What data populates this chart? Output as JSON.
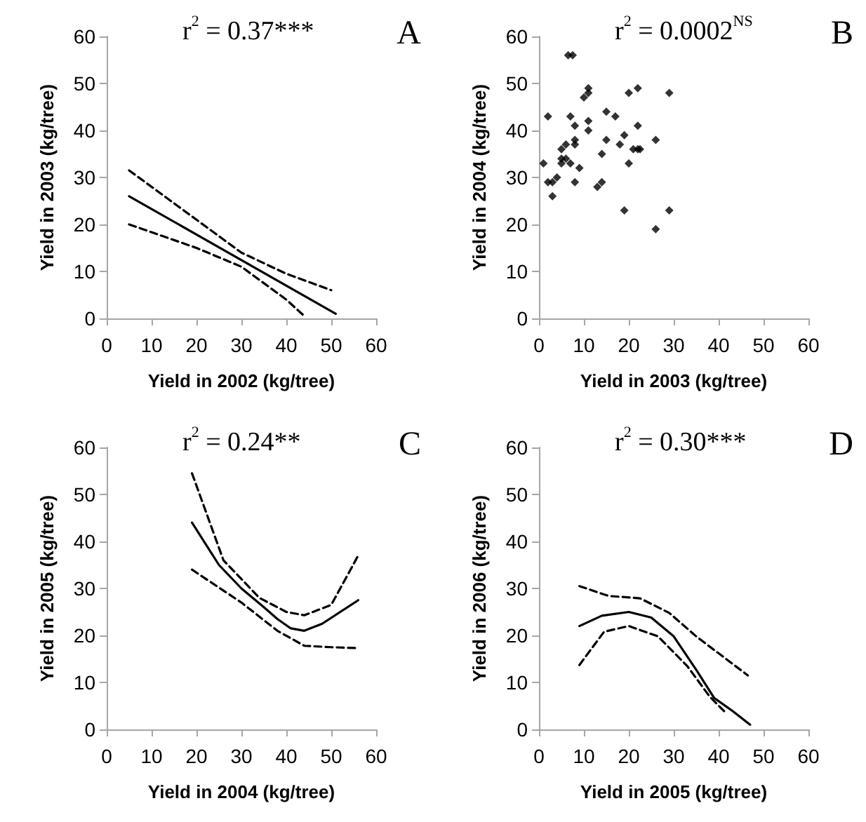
{
  "chart_data": [
    {
      "type": "line",
      "xlabel": "Yield in 2002 (kg/tree)",
      "ylabel": "Yield in 2003 (kg/tree)",
      "annotations": [
        "r$^{2}$ = 0.37***",
        "A"
      ],
      "xlim": [
        0,
        60
      ],
      "xticks": [
        0,
        10,
        20,
        30,
        40,
        50,
        60
      ],
      "ylim": [
        0,
        60
      ],
      "yticks": [
        0,
        10,
        20,
        30,
        40,
        50,
        60
      ],
      "grid": false,
      "marker": "none",
      "series": [
        {
          "color": "#000000",
          "line_style": "solid",
          "x": [
            5,
            51
          ],
          "values": [
            26,
            1
          ]
        },
        {
          "color": "#000000",
          "line_style": "dashed",
          "x": [
            5,
            20,
            30,
            40,
            50
          ],
          "values": [
            31.5,
            21,
            14,
            9.5,
            6
          ]
        },
        {
          "color": "#000000",
          "line_style": "dashed",
          "x": [
            5,
            20,
            30,
            40,
            44
          ],
          "values": [
            20,
            15,
            11,
            4,
            0.5
          ]
        }
      ]
    },
    {
      "type": "scatter",
      "xlabel": "Yield in 2003 (kg/tree)",
      "ylabel": "Yield in 2004 (kg/tree)",
      "annotations": [
        "r$^{2}$ = 0.0002$^{NS}$",
        "B"
      ],
      "xlim": [
        0,
        60
      ],
      "xticks": [
        0,
        10,
        20,
        30,
        40,
        50,
        60
      ],
      "ylim": [
        0,
        60
      ],
      "yticks": [
        0,
        10,
        20,
        30,
        40,
        50,
        60
      ],
      "grid": false,
      "marker": "diamond",
      "series": [
        {
          "color": "#000000",
          "x": [
            6.5,
            7.5,
            2,
            7,
            8,
            11,
            1,
            2,
            3,
            3,
            4,
            5,
            5,
            6,
            6,
            7,
            5,
            8,
            8,
            9,
            8,
            10,
            11,
            11,
            11,
            14,
            13,
            14,
            15,
            15,
            17,
            18,
            19,
            19,
            20,
            20,
            21,
            22,
            22.5,
            22,
            22,
            26,
            26,
            29,
            29
          ],
          "values": [
            56,
            56,
            43,
            43,
            41,
            42,
            33,
            29,
            29,
            26,
            30,
            36,
            34,
            37,
            34,
            33,
            33,
            38,
            37,
            32,
            29,
            47,
            48,
            49,
            40,
            35,
            28,
            29,
            44,
            38,
            43,
            37,
            39,
            23,
            48,
            33,
            36,
            36,
            36,
            49,
            41,
            38,
            19,
            48,
            23
          ]
        }
      ]
    },
    {
      "type": "line",
      "xlabel": "Yield in 2004 (kg/tree)",
      "ylabel": "Yield in 2005 (kg/tree)",
      "annotations": [
        "r$^{2}$ = 0.24**",
        "C"
      ],
      "xlim": [
        0,
        60
      ],
      "xticks": [
        0,
        10,
        20,
        30,
        40,
        50,
        60
      ],
      "ylim": [
        0,
        60
      ],
      "yticks": [
        0,
        10,
        20,
        30,
        40,
        50,
        60
      ],
      "grid": false,
      "marker": "none",
      "series": [
        {
          "color": "#000000",
          "line_style": "solid",
          "x": [
            19,
            25,
            30,
            35,
            38,
            41,
            44,
            48,
            52,
            56
          ],
          "values": [
            44,
            35,
            30,
            26,
            23.5,
            21.5,
            21,
            22.5,
            25,
            27.5
          ]
        },
        {
          "color": "#000000",
          "line_style": "dashed",
          "x": [
            19,
            26,
            34,
            40,
            44,
            50,
            56
          ],
          "values": [
            54.5,
            36,
            28,
            25,
            24.3,
            26.5,
            37
          ]
        },
        {
          "color": "#000000",
          "line_style": "dashed",
          "x": [
            19,
            30,
            38,
            44,
            50,
            56
          ],
          "values": [
            34,
            27,
            21,
            17.8,
            17.5,
            17.3
          ]
        }
      ]
    },
    {
      "type": "line",
      "xlabel": "Yield in 2005 (kg/tree)",
      "ylabel": "Yield in 2006 (kg/tree)",
      "annotations": [
        "r$^{2}$ = 0.30***",
        "D"
      ],
      "xlim": [
        0,
        60
      ],
      "xticks": [
        0,
        10,
        20,
        30,
        40,
        50,
        60
      ],
      "ylim": [
        0,
        60
      ],
      "yticks": [
        0,
        10,
        20,
        30,
        40,
        50,
        60
      ],
      "grid": false,
      "marker": "none",
      "series": [
        {
          "color": "#000000",
          "line_style": "solid",
          "x": [
            9,
            14,
            20,
            25,
            30,
            35,
            39,
            43,
            47
          ],
          "values": [
            22,
            24.2,
            25,
            23.8,
            19.8,
            12.7,
            6.7,
            4,
            1
          ]
        },
        {
          "color": "#000000",
          "line_style": "dashed",
          "x": [
            9,
            15.5,
            22.5,
            29,
            35,
            46.5
          ],
          "values": [
            30.5,
            28.4,
            27.9,
            24.8,
            19.8,
            11.5
          ]
        },
        {
          "color": "#000000",
          "line_style": "dashed",
          "x": [
            9,
            14.5,
            20,
            26.5,
            33,
            38,
            41.5
          ],
          "values": [
            13.7,
            20.8,
            22,
            19.8,
            13.5,
            7,
            3.6
          ]
        }
      ]
    }
  ]
}
